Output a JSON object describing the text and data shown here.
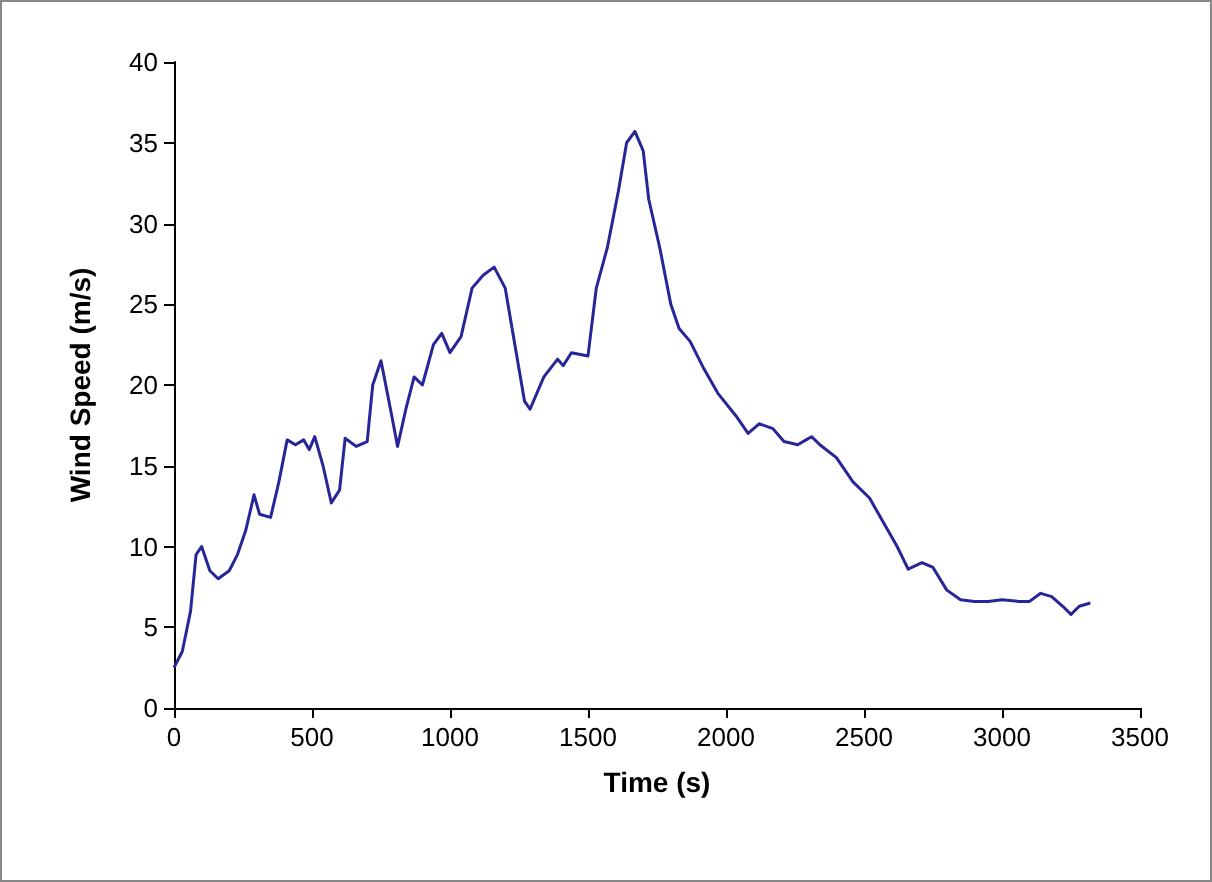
{
  "chart_data": {
    "type": "line",
    "xlabel": "Time (s)",
    "ylabel": "Wind Speed (m/s)",
    "xlim": [
      0,
      3500
    ],
    "xticks": [
      0,
      500,
      1000,
      1500,
      2000,
      2500,
      3000,
      3500
    ],
    "ylim": [
      0,
      40
    ],
    "yticks": [
      0,
      5,
      10,
      15,
      20,
      25,
      30,
      35,
      40
    ],
    "grid": false,
    "marker": "none",
    "line_style": "solid",
    "series": [
      {
        "color": "#262699",
        "x": [
          0,
          30,
          60,
          80,
          100,
          130,
          160,
          200,
          230,
          260,
          290,
          310,
          350,
          380,
          410,
          440,
          470,
          490,
          510,
          540,
          570,
          600,
          620,
          660,
          700,
          720,
          750,
          790,
          810,
          840,
          870,
          900,
          940,
          970,
          1000,
          1040,
          1080,
          1120,
          1160,
          1200,
          1240,
          1270,
          1290,
          1340,
          1390,
          1410,
          1440,
          1500,
          1530,
          1570,
          1610,
          1640,
          1670,
          1700,
          1720,
          1760,
          1800,
          1830,
          1870,
          1920,
          1970,
          2040,
          2080,
          2120,
          2170,
          2210,
          2260,
          2290,
          2310,
          2340,
          2400,
          2460,
          2520,
          2570,
          2620,
          2660,
          2710,
          2750,
          2800,
          2850,
          2900,
          2950,
          3000,
          3060,
          3100,
          3140,
          3180,
          3220,
          3250,
          3280,
          3320
        ],
        "values": [
          2.5,
          3.5,
          6,
          9.5,
          10,
          8.5,
          8,
          8.5,
          9.5,
          11,
          13.2,
          12,
          11.8,
          14,
          16.6,
          16.3,
          16.6,
          16,
          16.8,
          15,
          12.7,
          13.5,
          16.7,
          16.2,
          16.5,
          20,
          21.5,
          18,
          16.2,
          18.5,
          20.5,
          20,
          22.5,
          23.2,
          22,
          23,
          26,
          26.8,
          27.3,
          26,
          22,
          19,
          18.5,
          20.5,
          21.6,
          21.2,
          22,
          21.8,
          26,
          28.5,
          32,
          35,
          35.7,
          34.5,
          31.5,
          28.5,
          25,
          23.5,
          22.7,
          21,
          19.5,
          18,
          17,
          17.6,
          17.3,
          16.5,
          16.3,
          16.6,
          16.8,
          16.3,
          15.5,
          14,
          13,
          11.5,
          10,
          8.6,
          9,
          8.7,
          7.3,
          6.7,
          6.6,
          6.6,
          6.7,
          6.6,
          6.6,
          7.1,
          6.9,
          6.3,
          5.8,
          6.3,
          6.5
        ]
      }
    ]
  }
}
